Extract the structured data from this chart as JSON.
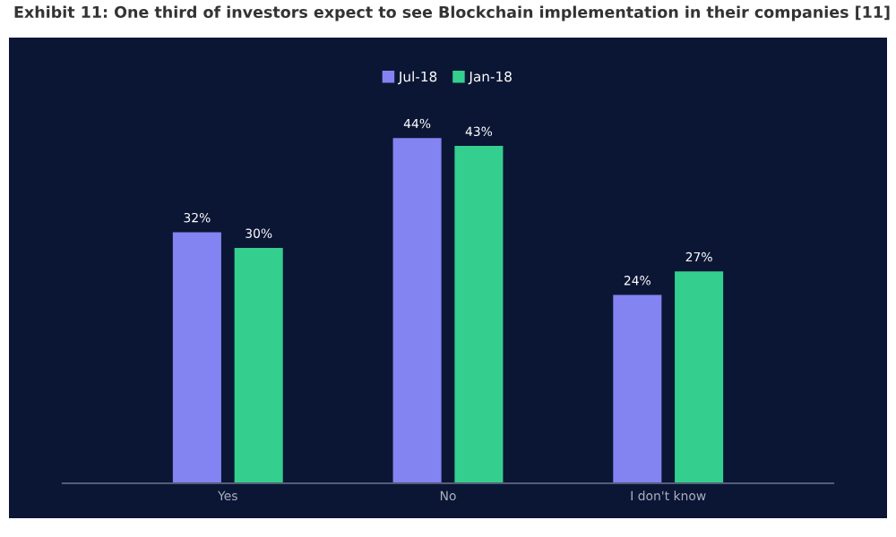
{
  "chart_data": {
    "type": "bar",
    "title": "Exhibit 11: One third of investors expect to see Blockchain implementation in their companies [11]",
    "categories": [
      "Yes",
      "No",
      "I don't know"
    ],
    "series": [
      {
        "name": "Jul-18",
        "color": "#8383f2",
        "values": [
          32,
          44,
          24
        ],
        "value_labels": [
          "32%",
          "44%",
          "24%"
        ]
      },
      {
        "name": "Jan-18",
        "color": "#34cf8e",
        "values": [
          30,
          43,
          27
        ],
        "value_labels": [
          "30%",
          "43%",
          "27%"
        ]
      }
    ],
    "legend": "top"
  }
}
